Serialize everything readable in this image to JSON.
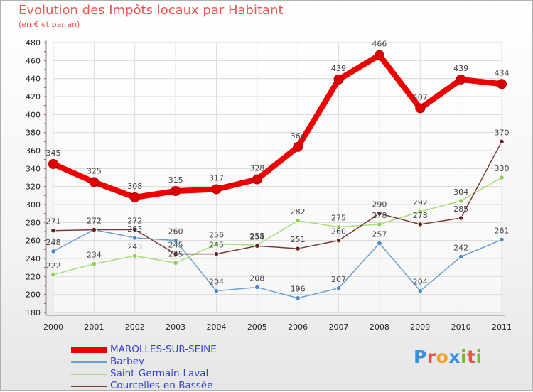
{
  "title": "Evolution des Impôts locaux par Habitant",
  "subtitle": "(en € et par an)",
  "brand": {
    "text": "Proxiti",
    "letter_colors": [
      "#3a8ee0",
      "#e8564a",
      "#f0a22a",
      "#3a8ee0",
      "#7ab82e",
      "#e8564a",
      "#7ab82e"
    ]
  },
  "chart_data": {
    "type": "line",
    "title": "Evolution des Impôts locaux par Habitant",
    "ylabel": "(en € et par an)",
    "xlabel": "",
    "x": [
      "2000",
      "2001",
      "2002",
      "2003",
      "2004",
      "2005",
      "2006",
      "2007",
      "2008",
      "2009",
      "2010",
      "2011"
    ],
    "ylim": [
      180,
      480
    ],
    "yticks": [
      180,
      200,
      220,
      240,
      260,
      280,
      300,
      320,
      340,
      360,
      380,
      400,
      420,
      440,
      460,
      480
    ],
    "grid": true,
    "series": [
      {
        "name": "MAROLLES-SUR-SEINE",
        "color": "#ee0000",
        "marker": "#dd0000",
        "bold": true,
        "values": [
          345,
          325,
          308,
          315,
          317,
          328,
          364,
          439,
          466,
          407,
          439,
          434
        ]
      },
      {
        "name": "Barbey",
        "color": "#6a9fd0",
        "marker": "#4a88cc",
        "bold": false,
        "values": [
          248,
          272,
          263,
          260,
          204,
          208,
          196,
          207,
          257,
          204,
          242,
          261
        ]
      },
      {
        "name": "Saint-Germain-Laval",
        "color": "#a8dc7c",
        "marker": "#8ccf50",
        "bold": false,
        "values": [
          222,
          234,
          243,
          235,
          256,
          255,
          282,
          275,
          278,
          292,
          304,
          330
        ]
      },
      {
        "name": "Courcelles-en-Bassée",
        "color": "#7a3a3a",
        "marker": "#6a2020",
        "bold": false,
        "values": [
          271,
          272,
          272,
          245,
          245,
          254,
          251,
          260,
          290,
          278,
          285,
          370
        ]
      }
    ]
  }
}
